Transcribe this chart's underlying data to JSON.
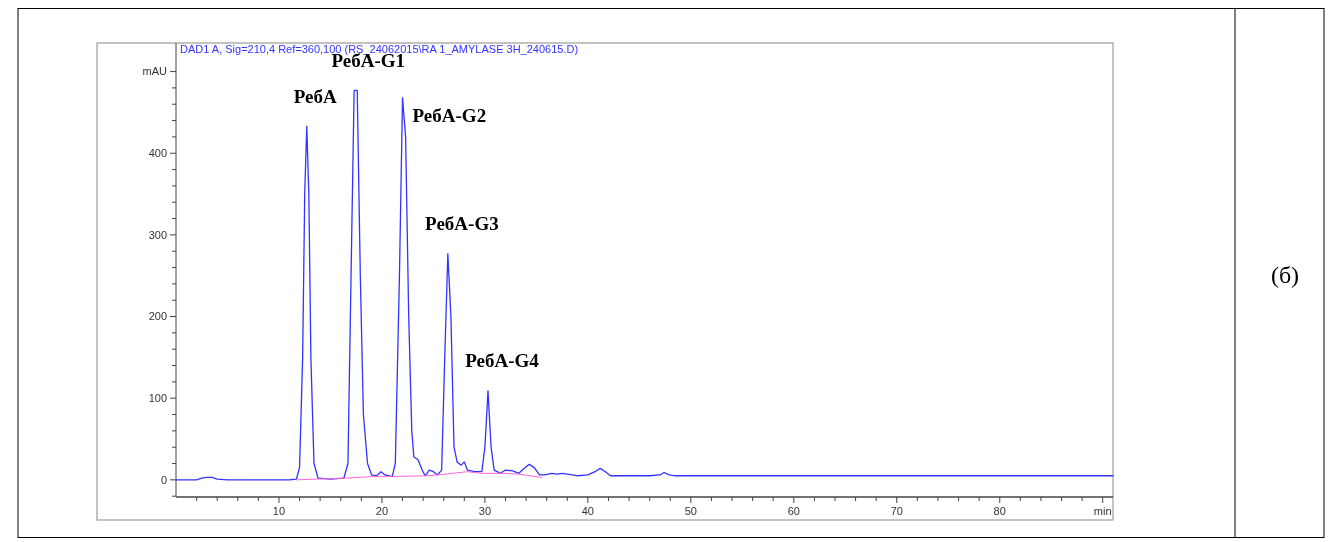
{
  "chart_data": {
    "type": "line",
    "title": "DAD1 A, Sig=210,4 Ref=360,100 (RS_24062015\\RA 1_AMYLASE 3H_240615.D)",
    "series": [
      {
        "color": "#3333ff",
        "x": [
          0,
          2,
          2.5,
          3,
          3.5,
          4,
          5,
          8,
          11,
          11.7,
          12.0,
          12.3,
          12.5,
          12.7,
          12.9,
          13.1,
          13.4,
          13.8,
          15,
          16.3,
          16.7,
          17.0,
          17.3,
          17.6,
          17.9,
          18.2,
          18.6,
          19.0,
          19.5,
          19.9,
          20.3,
          21.0,
          21.3,
          21.7,
          22.0,
          22.3,
          22.6,
          22.9,
          23.1,
          23.5,
          23.9,
          24.2,
          24.6,
          25.0,
          25.4,
          25.8,
          26.1,
          26.4,
          26.7,
          27.0,
          27.3,
          27.7,
          28.0,
          28.3,
          29.0,
          29.7,
          30.0,
          30.3,
          30.6,
          30.9,
          31.5,
          32.0,
          32.7,
          33.3,
          33.8,
          34.3,
          34.8,
          35.3,
          35.8,
          36.5,
          37.0,
          37.5,
          38.5,
          39.0,
          40.0,
          40.7,
          41.2,
          41.7,
          42.2,
          44,
          46,
          47.0,
          47.4,
          47.9,
          48.5,
          55,
          70,
          80,
          91
        ],
        "values": [
          0,
          0,
          2,
          3,
          3,
          1,
          0,
          0,
          0,
          1,
          15,
          150,
          350,
          433,
          350,
          150,
          20,
          2,
          1,
          2,
          20,
          250,
          477,
          477,
          250,
          80,
          20,
          6,
          5,
          10,
          6,
          4,
          20,
          250,
          468,
          420,
          200,
          60,
          28,
          25,
          12,
          5,
          12,
          10,
          6,
          12,
          150,
          277,
          200,
          40,
          22,
          18,
          22,
          12,
          10,
          10,
          40,
          109,
          40,
          12,
          8,
          12,
          11,
          8,
          14,
          19,
          15,
          6,
          6,
          8,
          7,
          8,
          6,
          5,
          6,
          10,
          14,
          10,
          5,
          5,
          5,
          6,
          9,
          6,
          5,
          5,
          5,
          5,
          5
        ]
      },
      {
        "color": "#ff66dd",
        "x": [
          11.7,
          13.8,
          16.3,
          19,
          21,
          24.2,
          25.4,
          28.3,
          29.7,
          31.5,
          33.3,
          35.5
        ],
        "values": [
          0,
          1,
          2,
          4,
          4,
          5,
          6,
          10,
          8,
          8,
          7,
          3
        ]
      }
    ],
    "xlim": [
      0,
      91
    ],
    "xticks": [
      {
        "value": 2,
        "label": null
      },
      {
        "value": 4,
        "label": null
      },
      {
        "value": 6,
        "label": null
      },
      {
        "value": 8,
        "label": null
      },
      10,
      {
        "value": 12,
        "label": null
      },
      {
        "value": 14,
        "label": null
      },
      {
        "value": 16,
        "label": null
      },
      {
        "value": 18,
        "label": null
      },
      20,
      {
        "value": 22,
        "label": null
      },
      {
        "value": 24,
        "label": null
      },
      {
        "value": 26,
        "label": null
      },
      {
        "value": 28,
        "label": null
      },
      30,
      {
        "value": 32,
        "label": null
      },
      {
        "value": 34,
        "label": null
      },
      {
        "value": 36,
        "label": null
      },
      {
        "value": 38,
        "label": null
      },
      40,
      {
        "value": 42,
        "label": null
      },
      {
        "value": 44,
        "label": null
      },
      {
        "value": 46,
        "label": null
      },
      {
        "value": 48,
        "label": null
      },
      50,
      {
        "value": 52,
        "label": null
      },
      {
        "value": 54,
        "label": null
      },
      {
        "value": 56,
        "label": null
      },
      {
        "value": 58,
        "label": null
      },
      60,
      {
        "value": 62,
        "label": null
      },
      {
        "value": 64,
        "label": null
      },
      {
        "value": 66,
        "label": null
      },
      {
        "value": 68,
        "label": null
      },
      70,
      {
        "value": 72,
        "label": null
      },
      {
        "value": 74,
        "label": null
      },
      {
        "value": 76,
        "label": null
      },
      {
        "value": 78,
        "label": null
      },
      80,
      {
        "value": 82,
        "label": null
      },
      {
        "value": 84,
        "label": null
      },
      {
        "value": 86,
        "label": null
      },
      {
        "value": 88,
        "label": null
      },
      {
        "value": 90,
        "label": "min"
      }
    ],
    "ylim": [
      -21,
      535
    ],
    "yticks": [
      {
        "value": -20,
        "label": null
      },
      0,
      {
        "value": 20,
        "label": null
      },
      {
        "value": 40,
        "label": null
      },
      {
        "value": 60,
        "label": null
      },
      {
        "value": 80,
        "label": null
      },
      100,
      {
        "value": 120,
        "label": null
      },
      {
        "value": 140,
        "label": null
      },
      {
        "value": 160,
        "label": null
      },
      {
        "value": 180,
        "label": null
      },
      200,
      {
        "value": 220,
        "label": null
      },
      {
        "value": 240,
        "label": null
      },
      {
        "value": 260,
        "label": null
      },
      {
        "value": 280,
        "label": null
      },
      300,
      {
        "value": 320,
        "label": null
      },
      {
        "value": 340,
        "label": null
      },
      {
        "value": 360,
        "label": null
      },
      {
        "value": 380,
        "label": null
      },
      400,
      {
        "value": 420,
        "label": null
      },
      {
        "value": 440,
        "label": null
      },
      {
        "value": 460,
        "label": null
      },
      {
        "value": 480,
        "label": null
      },
      {
        "value": 500,
        "label": "mAU"
      }
    ],
    "annotations": [
      {
        "text": "РебА",
        "x": 12.7,
        "y": 433
      },
      {
        "text": "РебА-G1",
        "x": 17.3,
        "y": 477
      },
      {
        "text": "РебА-G2",
        "x": 22.0,
        "y": 468
      },
      {
        "text": "РебА-G3",
        "x": 26.4,
        "y": 277
      },
      {
        "text": "РебА-G4",
        "x": 30.3,
        "y": 109
      },
      "(б)"
    ],
    "grid": false,
    "marker": "none",
    "line_style": "solid"
  }
}
